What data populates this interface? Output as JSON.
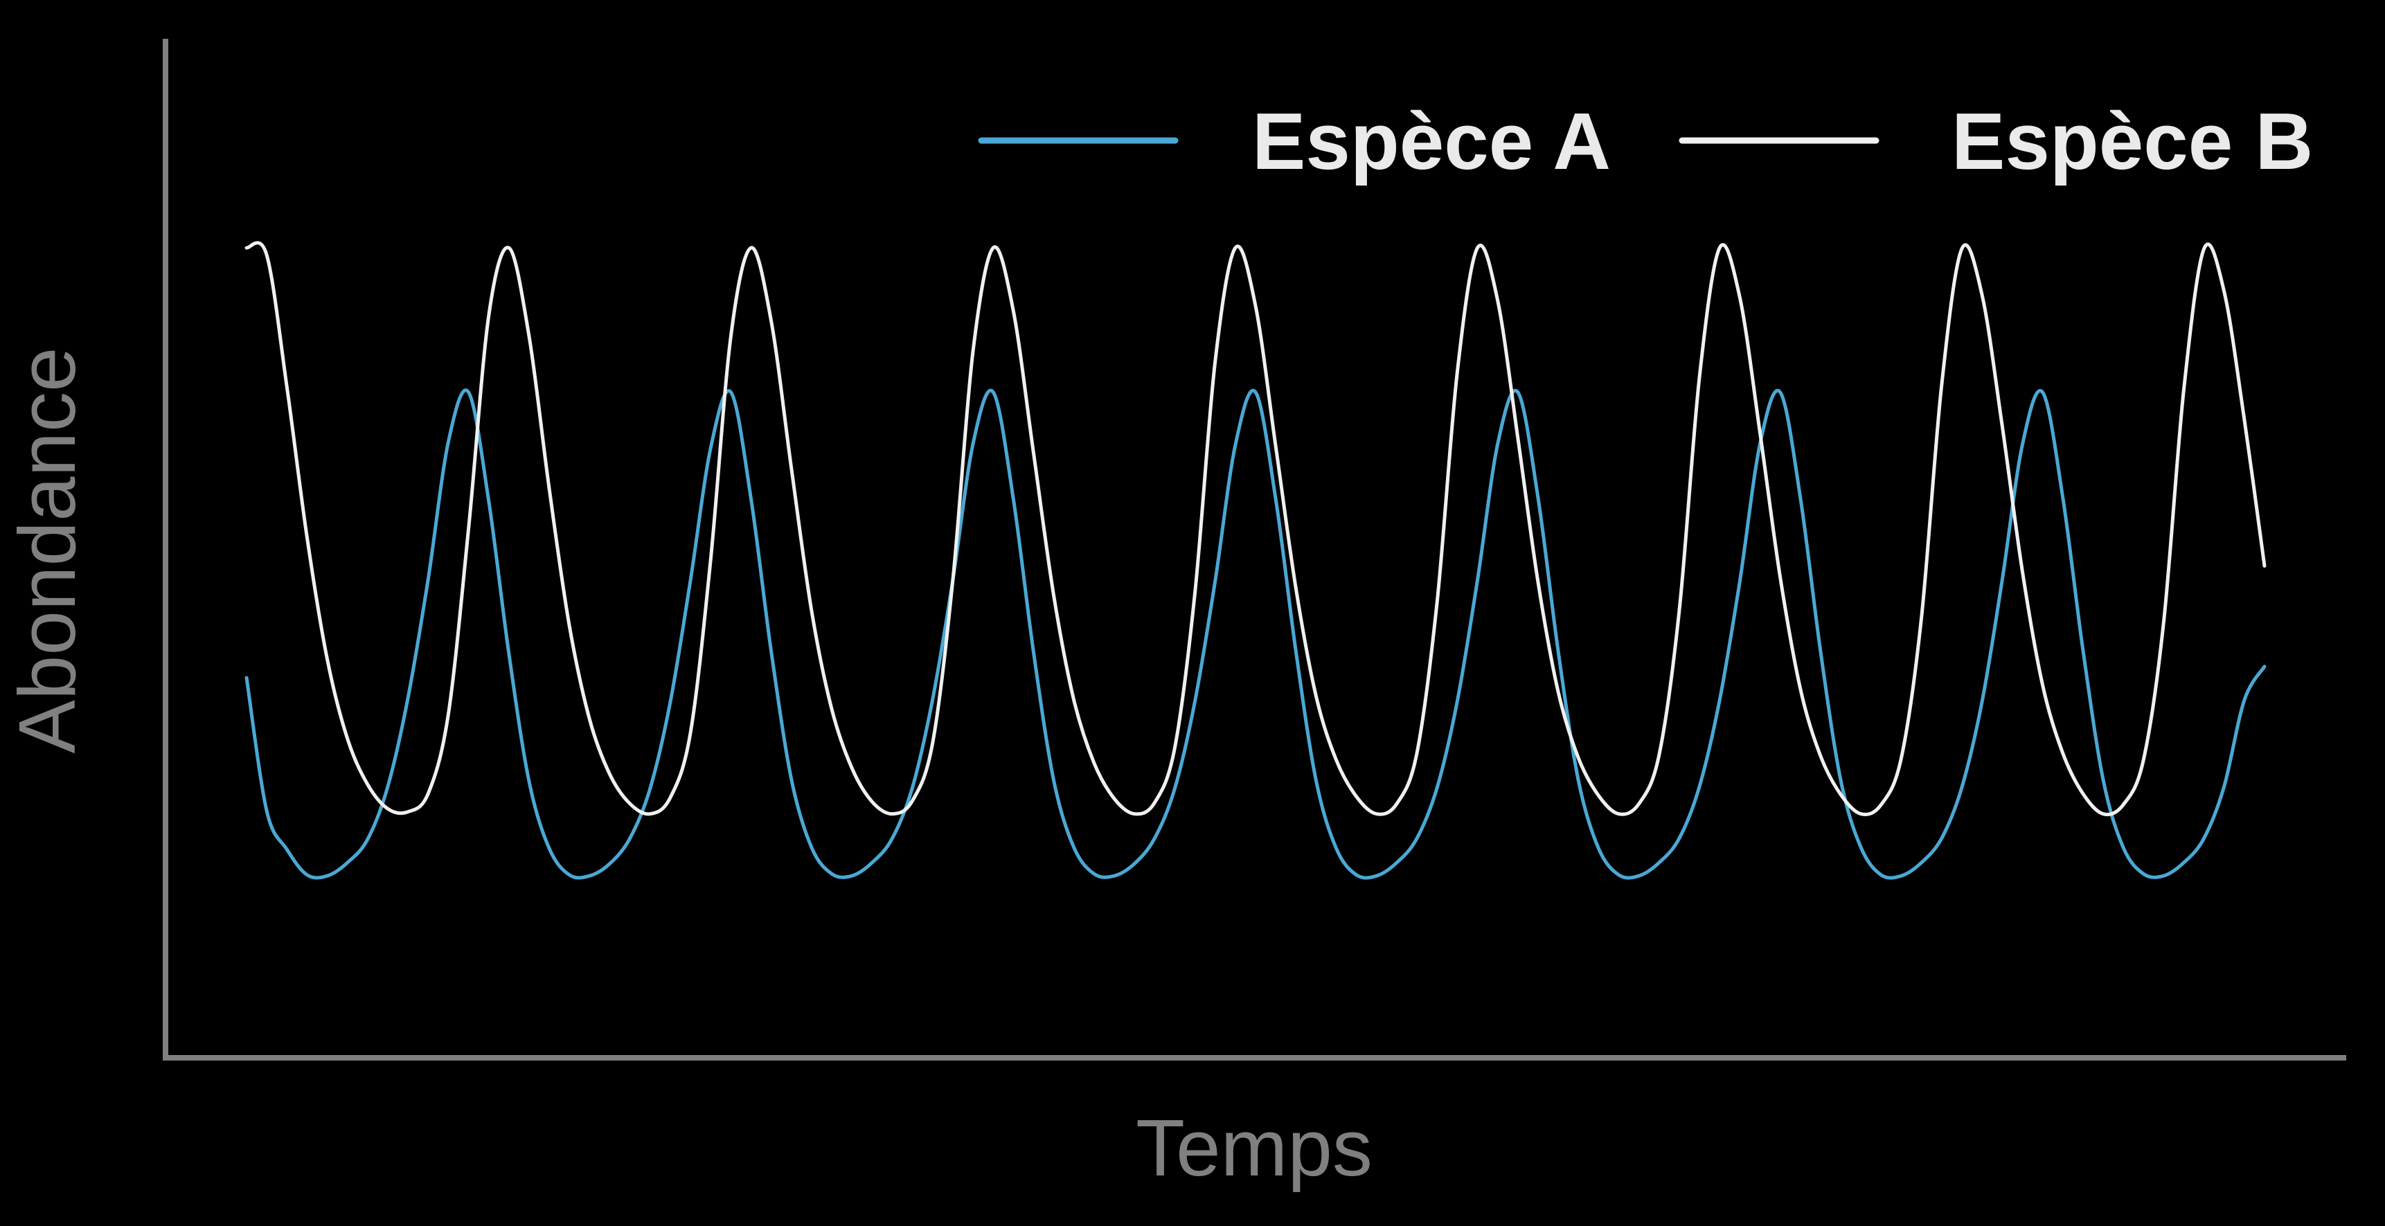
{
  "chart_data": {
    "type": "line",
    "title": "",
    "xlabel": "Temps",
    "ylabel": "Abondance",
    "grid": false,
    "legend_position": "top-right",
    "x_ticks": [],
    "y_ticks": [],
    "xlim": [
      0,
      100
    ],
    "ylim": [
      0,
      100
    ],
    "series": [
      {
        "name": "Espèce A",
        "color": "#4aa8d4",
        "x": [
          0,
          1,
          2,
          3,
          4,
          5,
          6,
          7,
          8,
          9,
          10,
          11,
          12,
          13,
          14,
          15,
          16,
          17,
          18,
          19,
          20,
          21,
          22,
          23,
          24,
          25,
          26,
          27,
          28,
          29,
          30,
          31,
          32,
          33,
          34,
          35,
          36,
          37,
          38,
          39,
          40,
          41,
          42,
          43,
          44,
          45,
          46,
          47,
          48,
          49,
          50,
          51,
          52,
          53,
          54,
          55,
          56,
          57,
          58,
          59,
          60,
          61,
          62,
          63,
          64,
          65,
          66,
          67,
          68,
          69,
          70,
          71,
          72,
          73,
          74,
          75,
          76,
          77,
          78,
          79,
          80,
          81,
          82,
          83,
          84,
          85,
          86,
          87,
          88,
          89,
          90,
          91,
          92,
          93,
          94,
          95,
          96,
          97,
          98,
          99,
          100
        ],
        "values": [
          37.4,
          24.3,
          20.5,
          18.0,
          17.9,
          19.2,
          21.5,
          26.7,
          35.4,
          47.1,
          60.6,
          65.5,
          54.8,
          39.8,
          27.2,
          20.6,
          18.0,
          17.9,
          19.1,
          21.6,
          26.5,
          35.0,
          47.0,
          60.0,
          65.5,
          55.0,
          40.0,
          27.4,
          20.7,
          18.1,
          17.9,
          19.2,
          21.6,
          26.6,
          35.3,
          47.0,
          60.4,
          65.5,
          55.0,
          39.9,
          27.3,
          20.7,
          18.1,
          17.9,
          19.1,
          21.6,
          26.5,
          35.1,
          46.9,
          60.3,
          65.5,
          55.0,
          40.0,
          27.3,
          20.6,
          18.0,
          17.9,
          19.2,
          21.6,
          26.6,
          35.1,
          47.0,
          60.4,
          65.5,
          55.1,
          40.0,
          27.3,
          20.6,
          18.0,
          17.9,
          19.2,
          21.6,
          26.7,
          35.2,
          46.9,
          60.4,
          65.5,
          55.1,
          40.0,
          27.3,
          20.7,
          18.0,
          17.9,
          19.2,
          21.6,
          26.6,
          35.0,
          47.0,
          60.3,
          65.5,
          55.2,
          40.2,
          27.4,
          20.7,
          18.1,
          17.9,
          19.2,
          21.6,
          26.7,
          35.2,
          38.5
        ]
      },
      {
        "name": "Espèce B",
        "color": "#f0f0f0",
        "x": [
          0,
          1,
          2,
          3,
          4,
          5,
          6,
          7,
          8,
          9,
          10,
          11,
          12,
          13,
          14,
          15,
          16,
          17,
          18,
          19,
          20,
          21,
          22,
          23,
          24,
          25,
          26,
          27,
          28,
          29,
          30,
          31,
          32,
          33,
          34,
          35,
          36,
          37,
          38,
          39,
          40,
          41,
          42,
          43,
          44,
          45,
          46,
          47,
          48,
          49,
          50,
          51,
          52,
          53,
          54,
          55,
          56,
          57,
          58,
          59,
          60,
          61,
          62,
          63,
          64,
          65,
          66,
          67,
          68,
          69,
          70,
          71,
          72,
          73,
          74,
          75,
          76,
          77,
          78,
          79,
          80,
          81,
          82,
          83,
          84,
          85,
          86,
          87,
          88,
          89,
          90,
          91,
          92,
          93,
          94,
          95,
          96,
          97,
          98,
          99,
          100
        ],
        "values": [
          79.7,
          79.0,
          66.0,
          51.2,
          39.2,
          31.4,
          26.9,
          24.5,
          24.2,
          26.0,
          33.8,
          52.0,
          73.0,
          79.7,
          71.0,
          56.0,
          42.5,
          33.3,
          27.9,
          25.0,
          24.0,
          25.6,
          32.0,
          49.0,
          71.0,
          79.7,
          72.5,
          58.0,
          44.0,
          34.3,
          28.5,
          25.2,
          24.0,
          25.3,
          31.0,
          47.0,
          69.5,
          79.7,
          73.5,
          59.5,
          45.5,
          35.2,
          29.0,
          25.5,
          24.0,
          25.1,
          30.5,
          45.8,
          68.5,
          79.7,
          74.0,
          60.2,
          46.2,
          35.6,
          29.3,
          25.7,
          24.0,
          25.0,
          30.0,
          44.9,
          67.5,
          79.7,
          74.5,
          61.0,
          46.8,
          36.0,
          29.5,
          25.8,
          24.0,
          25.0,
          29.8,
          44.0,
          67.0,
          79.7,
          74.8,
          61.5,
          47.3,
          36.3,
          29.7,
          25.9,
          24.0,
          24.9,
          29.5,
          43.3,
          66.2,
          79.6,
          75.1,
          62.2,
          47.9,
          36.7,
          30.0,
          26.0,
          24.0,
          24.9,
          29.3,
          42.8,
          65.7,
          79.6,
          75.4,
          62.8,
          48.4
        ]
      }
    ]
  }
}
